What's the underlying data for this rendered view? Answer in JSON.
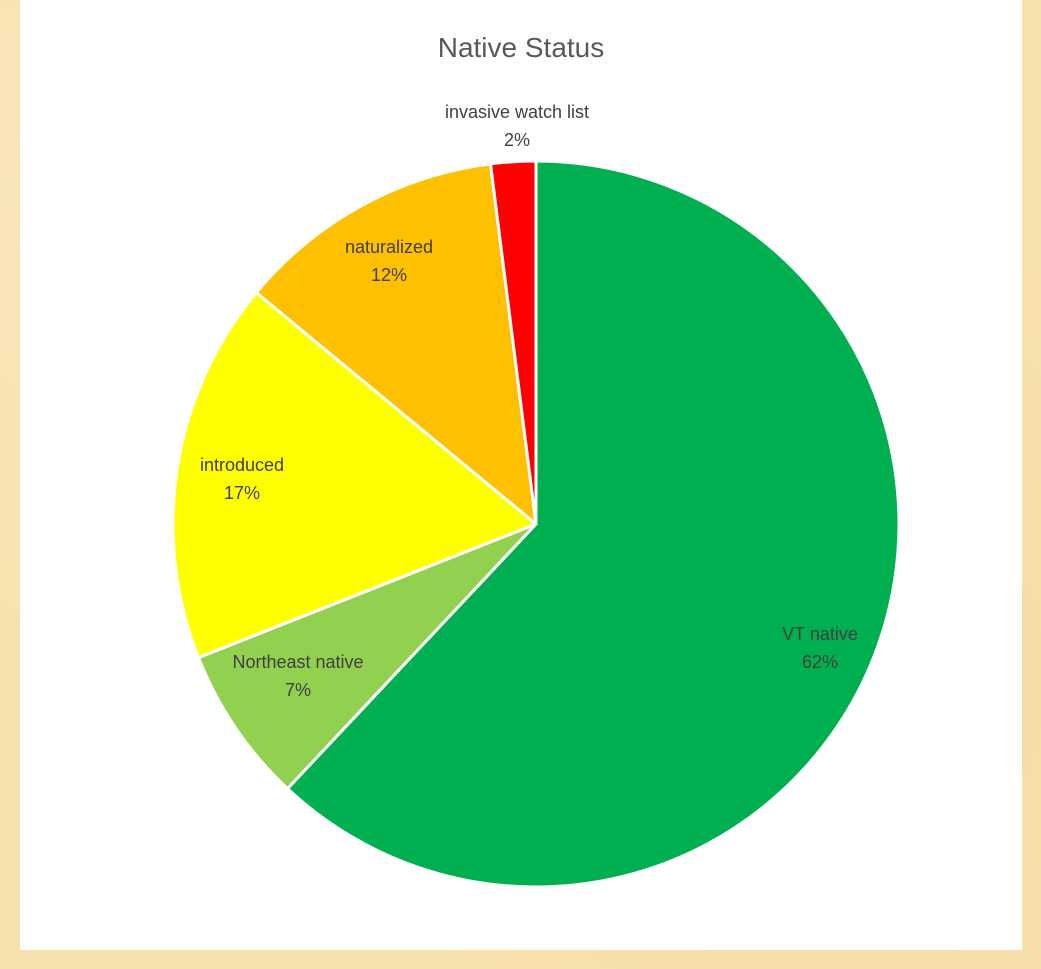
{
  "chart_data": {
    "type": "pie",
    "title": "Native Status",
    "slices": [
      {
        "label": "VT native",
        "value": 62,
        "value_label": "62%",
        "color": "#00b050"
      },
      {
        "label": "Northeast native",
        "value": 7,
        "value_label": "7%",
        "color": "#92d050"
      },
      {
        "label": "introduced",
        "value": 17,
        "value_label": "17%",
        "color": "#ffff00"
      },
      {
        "label": "naturalized",
        "value": 12,
        "value_label": "12%",
        "color": "#ffc000"
      },
      {
        "label": "invasive watch list",
        "value": 2,
        "value_label": "2%",
        "color": "#ff0000"
      }
    ],
    "start_angle_deg": 0,
    "direction": "clockwise",
    "slice_border_color": "#ffffff"
  }
}
